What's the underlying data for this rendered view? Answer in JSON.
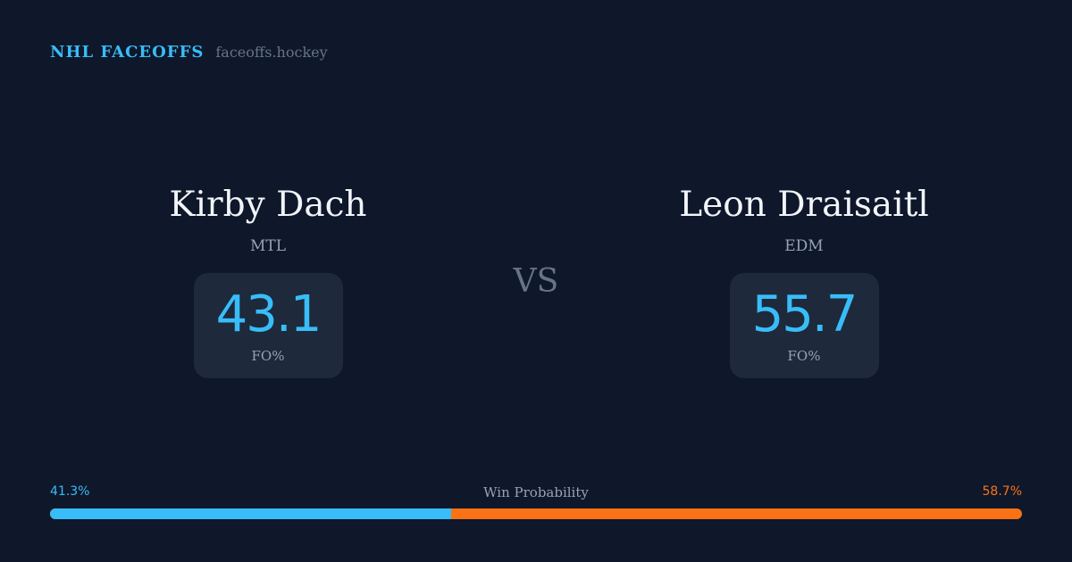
{
  "brand": {
    "name": "NHL FACEOFFS",
    "url": "faceoffs.hockey"
  },
  "players": [
    {
      "name": "Kirby Dach",
      "team": "MTL",
      "fo_pct": "43.1",
      "fo_label": "FO%"
    },
    {
      "name": "Leon Draisaitl",
      "team": "EDM",
      "fo_pct": "55.7",
      "fo_label": "FO%"
    }
  ],
  "vs_label": "VS",
  "win_probability": {
    "label": "Win Probability",
    "left_text": "41.3%",
    "right_text": "58.7%",
    "left_value": 41.3,
    "right_value": 58.7
  },
  "colors": {
    "background": "#0f172a",
    "card": "#1e293b",
    "accent_blue": "#38bdf8",
    "accent_orange": "#f97316"
  }
}
